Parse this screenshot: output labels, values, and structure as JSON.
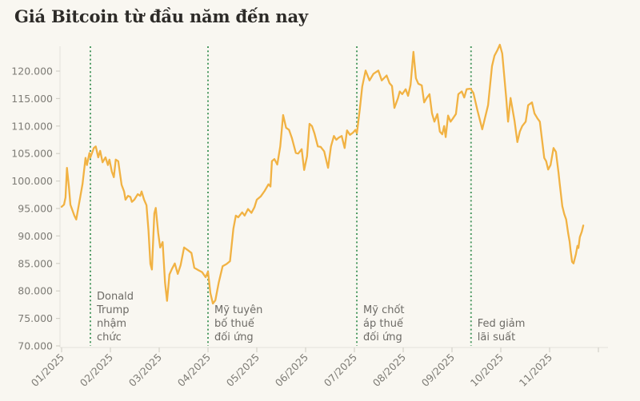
{
  "title": "Giá Bitcoin từ đầu năm đến nay",
  "colors": {
    "background": "#f9f7f1",
    "title_text": "#2d2b28",
    "price_line": "#f1b243",
    "event_line": "#4e9b64",
    "axis_line": "#e4e2da",
    "tick_mark": "#d3d1c9",
    "tick_text": "#7e7c76",
    "annotation_text": "#6d6b66"
  },
  "chart_data": {
    "type": "line",
    "title": "Giá Bitcoin từ đầu năm đến nay",
    "xlabel": "",
    "ylabel": "",
    "x_unit": "month of 2025 (decimal: 1 = 01/01/2025)",
    "y_unit": "USD",
    "ylim": [
      70000,
      120000
    ],
    "grid": false,
    "legend": "none",
    "y_axis": {
      "tick_values": [
        70000,
        75000,
        80000,
        85000,
        90000,
        95000,
        100000,
        105000,
        110000,
        115000,
        120000
      ],
      "tick_labels": [
        "70.000",
        "75.000",
        "80.000",
        "85.000",
        "90.000",
        "95.000",
        "100.000",
        "105.000",
        "110.000",
        "115.000",
        "120.000"
      ]
    },
    "x_axis": {
      "ticks": [
        {
          "m": 1,
          "label": "01/2025"
        },
        {
          "m": 2,
          "label": "02/2025"
        },
        {
          "m": 3,
          "label": "03/2025"
        },
        {
          "m": 4,
          "label": "04/2025"
        },
        {
          "m": 5,
          "label": "05/2025"
        },
        {
          "m": 6,
          "label": "06/2025"
        },
        {
          "m": 7,
          "label": "07/2025"
        },
        {
          "m": 8,
          "label": "08/2025"
        },
        {
          "m": 9,
          "label": "09/2025"
        },
        {
          "m": 10,
          "label": "10/2025"
        },
        {
          "m": 11,
          "label": "11/2025"
        },
        {
          "m": 12,
          "label": ""
        }
      ]
    },
    "events": [
      {
        "month": 1.59,
        "label": "Donald Trump nhậm chức",
        "label_lines": [
          "Donald",
          "Trump",
          "nhậm",
          "chức"
        ]
      },
      {
        "month": 4.0,
        "label": "Mỹ tuyên bố thuế đối ứng",
        "label_lines": [
          "Mỹ tuyên",
          "bố thuế",
          "đối ứng"
        ]
      },
      {
        "month": 7.05,
        "label": "Mỹ chốt áp thuế đối ứng",
        "label_lines": [
          "Mỹ chốt",
          "áp thuế",
          "đối ứng"
        ]
      },
      {
        "month": 9.39,
        "label": "Fed giảm lãi suất",
        "label_lines": [
          "Fed giảm",
          "lãi suất"
        ]
      }
    ],
    "series": [
      {
        "name": "Bitcoin",
        "points": [
          [
            1.0,
            95300
          ],
          [
            1.05,
            95700
          ],
          [
            1.08,
            97000
          ],
          [
            1.11,
            102400
          ],
          [
            1.15,
            99000
          ],
          [
            1.18,
            95700
          ],
          [
            1.26,
            93700
          ],
          [
            1.3,
            93000
          ],
          [
            1.38,
            97000
          ],
          [
            1.43,
            99500
          ],
          [
            1.49,
            104200
          ],
          [
            1.52,
            102900
          ],
          [
            1.57,
            105100
          ],
          [
            1.59,
            104300
          ],
          [
            1.66,
            106000
          ],
          [
            1.7,
            106300
          ],
          [
            1.75,
            104300
          ],
          [
            1.79,
            105500
          ],
          [
            1.84,
            103400
          ],
          [
            1.9,
            104300
          ],
          [
            1.95,
            102900
          ],
          [
            1.98,
            103900
          ],
          [
            2.03,
            101700
          ],
          [
            2.07,
            100700
          ],
          [
            2.11,
            103900
          ],
          [
            2.16,
            103600
          ],
          [
            2.23,
            99300
          ],
          [
            2.28,
            98100
          ],
          [
            2.31,
            96600
          ],
          [
            2.36,
            97300
          ],
          [
            2.41,
            97100
          ],
          [
            2.44,
            96200
          ],
          [
            2.49,
            96600
          ],
          [
            2.56,
            97600
          ],
          [
            2.61,
            97300
          ],
          [
            2.64,
            98100
          ],
          [
            2.69,
            96600
          ],
          [
            2.74,
            95600
          ],
          [
            2.78,
            91000
          ],
          [
            2.82,
            84900
          ],
          [
            2.85,
            83900
          ],
          [
            2.9,
            94100
          ],
          [
            2.93,
            95100
          ],
          [
            2.98,
            90500
          ],
          [
            3.02,
            87900
          ],
          [
            3.07,
            88900
          ],
          [
            3.12,
            81500
          ],
          [
            3.16,
            78200
          ],
          [
            3.21,
            83000
          ],
          [
            3.26,
            84000
          ],
          [
            3.32,
            85000
          ],
          [
            3.38,
            83100
          ],
          [
            3.44,
            84700
          ],
          [
            3.51,
            87900
          ],
          [
            3.59,
            87400
          ],
          [
            3.66,
            86900
          ],
          [
            3.72,
            84200
          ],
          [
            3.8,
            83800
          ],
          [
            3.88,
            83400
          ],
          [
            3.95,
            82500
          ],
          [
            4.0,
            83500
          ],
          [
            4.05,
            79600
          ],
          [
            4.1,
            77700
          ],
          [
            4.15,
            78300
          ],
          [
            4.22,
            81500
          ],
          [
            4.3,
            84500
          ],
          [
            4.38,
            84900
          ],
          [
            4.45,
            85400
          ],
          [
            4.52,
            91300
          ],
          [
            4.57,
            93700
          ],
          [
            4.62,
            93400
          ],
          [
            4.7,
            94300
          ],
          [
            4.75,
            93700
          ],
          [
            4.82,
            94900
          ],
          [
            4.89,
            94200
          ],
          [
            4.95,
            95200
          ],
          [
            5.0,
            96600
          ],
          [
            5.08,
            97200
          ],
          [
            5.16,
            98200
          ],
          [
            5.24,
            99400
          ],
          [
            5.28,
            99000
          ],
          [
            5.31,
            103600
          ],
          [
            5.36,
            104000
          ],
          [
            5.42,
            103000
          ],
          [
            5.48,
            106300
          ],
          [
            5.54,
            112000
          ],
          [
            5.6,
            109700
          ],
          [
            5.66,
            109300
          ],
          [
            5.72,
            107800
          ],
          [
            5.8,
            105100
          ],
          [
            5.85,
            105000
          ],
          [
            5.92,
            105800
          ],
          [
            5.97,
            102000
          ],
          [
            6.03,
            104500
          ],
          [
            6.08,
            110400
          ],
          [
            6.13,
            110000
          ],
          [
            6.18,
            108700
          ],
          [
            6.25,
            106300
          ],
          [
            6.31,
            106200
          ],
          [
            6.38,
            105400
          ],
          [
            6.46,
            102400
          ],
          [
            6.52,
            106300
          ],
          [
            6.58,
            108200
          ],
          [
            6.63,
            107500
          ],
          [
            6.68,
            107900
          ],
          [
            6.74,
            108200
          ],
          [
            6.8,
            106000
          ],
          [
            6.85,
            109200
          ],
          [
            6.91,
            108400
          ],
          [
            6.97,
            108800
          ],
          [
            7.02,
            109300
          ],
          [
            7.05,
            108700
          ],
          [
            7.11,
            113000
          ],
          [
            7.16,
            117200
          ],
          [
            7.23,
            120100
          ],
          [
            7.31,
            118300
          ],
          [
            7.39,
            119500
          ],
          [
            7.49,
            120100
          ],
          [
            7.56,
            118300
          ],
          [
            7.66,
            119200
          ],
          [
            7.72,
            117800
          ],
          [
            7.77,
            117300
          ],
          [
            7.82,
            113300
          ],
          [
            7.89,
            115000
          ],
          [
            7.93,
            116300
          ],
          [
            7.98,
            115800
          ],
          [
            8.05,
            116700
          ],
          [
            8.1,
            115500
          ],
          [
            8.15,
            117500
          ],
          [
            8.21,
            123500
          ],
          [
            8.26,
            118700
          ],
          [
            8.31,
            117700
          ],
          [
            8.38,
            117400
          ],
          [
            8.43,
            114300
          ],
          [
            8.48,
            115100
          ],
          [
            8.54,
            115800
          ],
          [
            8.59,
            112300
          ],
          [
            8.64,
            110800
          ],
          [
            8.7,
            112200
          ],
          [
            8.75,
            109000
          ],
          [
            8.8,
            108500
          ],
          [
            8.84,
            110000
          ],
          [
            8.87,
            108000
          ],
          [
            8.92,
            111900
          ],
          [
            8.97,
            110800
          ],
          [
            9.02,
            111400
          ],
          [
            9.08,
            112200
          ],
          [
            9.13,
            115800
          ],
          [
            9.2,
            116300
          ],
          [
            9.25,
            115200
          ],
          [
            9.3,
            116700
          ],
          [
            9.38,
            116800
          ],
          [
            9.44,
            116000
          ],
          [
            9.52,
            112900
          ],
          [
            9.62,
            109400
          ],
          [
            9.74,
            113800
          ],
          [
            9.82,
            120900
          ],
          [
            9.87,
            122800
          ],
          [
            9.93,
            123800
          ],
          [
            9.98,
            124800
          ],
          [
            10.03,
            123200
          ],
          [
            10.11,
            115200
          ],
          [
            10.15,
            110800
          ],
          [
            10.2,
            115100
          ],
          [
            10.28,
            111000
          ],
          [
            10.34,
            107100
          ],
          [
            10.39,
            109000
          ],
          [
            10.44,
            110000
          ],
          [
            10.51,
            110800
          ],
          [
            10.56,
            113800
          ],
          [
            10.64,
            114300
          ],
          [
            10.69,
            112300
          ],
          [
            10.75,
            111400
          ],
          [
            10.8,
            110800
          ],
          [
            10.89,
            104200
          ],
          [
            10.93,
            103600
          ],
          [
            10.97,
            102100
          ],
          [
            11.02,
            102900
          ],
          [
            11.08,
            106000
          ],
          [
            11.13,
            105300
          ],
          [
            11.18,
            101700
          ],
          [
            11.21,
            99300
          ],
          [
            11.26,
            95400
          ],
          [
            11.3,
            94000
          ],
          [
            11.34,
            93000
          ],
          [
            11.38,
            90500
          ],
          [
            11.41,
            89000
          ],
          [
            11.43,
            87400
          ],
          [
            11.46,
            85300
          ],
          [
            11.49,
            85000
          ],
          [
            11.54,
            86700
          ],
          [
            11.57,
            88200
          ],
          [
            11.59,
            87800
          ],
          [
            11.62,
            89800
          ],
          [
            11.66,
            90800
          ],
          [
            11.69,
            91900
          ]
        ]
      }
    ]
  }
}
